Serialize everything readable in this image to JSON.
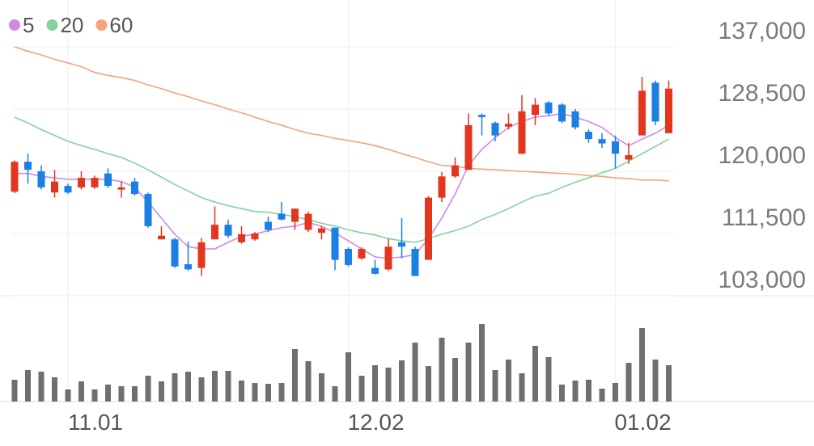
{
  "chart_data": {
    "type": "candlestick",
    "categories": [
      null,
      null,
      null,
      null,
      "11.01",
      null,
      null,
      null,
      null,
      null,
      null,
      null,
      null,
      null,
      null,
      null,
      null,
      null,
      null,
      null,
      null,
      null,
      null,
      null,
      null,
      "12.02",
      null,
      null,
      null,
      null,
      null,
      null,
      null,
      null,
      null,
      null,
      null,
      null,
      null,
      null,
      null,
      null,
      null,
      null,
      null,
      "01.02",
      null,
      null,
      null,
      null
    ],
    "open": [
      117200,
      121300,
      120000,
      117100,
      118000,
      117800,
      117800,
      119700,
      117500,
      118600,
      116900,
      110700,
      110700,
      107300,
      106800,
      110700,
      112700,
      110300,
      110700,
      113100,
      114200,
      113100,
      112000,
      111600,
      112300,
      109400,
      108100,
      106800,
      106600,
      110300,
      109400,
      107900,
      116400,
      119300,
      120200,
      127700,
      126600,
      126100,
      122400,
      127700,
      129400,
      129100,
      128200,
      125400,
      124400,
      124100,
      121600,
      124900,
      132100,
      125200
    ],
    "high": [
      121500,
      122400,
      120800,
      120200,
      118300,
      120000,
      119400,
      120400,
      118600,
      119100,
      117100,
      112500,
      110900,
      110400,
      110900,
      115200,
      113400,
      112500,
      111700,
      113800,
      115800,
      114900,
      114500,
      112500,
      112300,
      109600,
      109600,
      107900,
      110800,
      113600,
      109700,
      116600,
      119900,
      121900,
      127900,
      127900,
      126800,
      127900,
      130400,
      130000,
      129600,
      129300,
      128500,
      125700,
      125200,
      124900,
      123900,
      132900,
      132400,
      132400
    ],
    "low": [
      117000,
      118300,
      117500,
      116400,
      116900,
      117500,
      117600,
      117700,
      116400,
      116700,
      112300,
      110700,
      106800,
      106400,
      105700,
      110700,
      110900,
      110100,
      110500,
      111700,
      113300,
      112000,
      111700,
      110700,
      106500,
      107000,
      107900,
      105900,
      106400,
      108100,
      105700,
      107900,
      115800,
      119100,
      120200,
      124900,
      124100,
      125700,
      122400,
      126300,
      127600,
      126600,
      125700,
      123900,
      123200,
      120400,
      121000,
      124900,
      126300,
      125200
    ],
    "close": [
      121300,
      120200,
      117800,
      118600,
      117100,
      119100,
      119100,
      118000,
      117800,
      116900,
      112500,
      111200,
      107000,
      106600,
      110300,
      112700,
      111200,
      111400,
      111500,
      112000,
      113400,
      114900,
      114200,
      112200,
      107900,
      107200,
      109400,
      106000,
      109700,
      109700,
      105700,
      116400,
      119300,
      120800,
      126300,
      127400,
      124900,
      126500,
      128200,
      129100,
      127900,
      126800,
      126000,
      124400,
      123800,
      122400,
      122200,
      131000,
      126800,
      131300
    ],
    "up_color": "#e2361f",
    "down_color": "#1b7fe3",
    "series": [
      {
        "name": "5",
        "color": "#cf8ae6",
        "values": [
          119700,
          119700,
          119300,
          119100,
          118900,
          118900,
          118900,
          118900,
          118600,
          117800,
          115800,
          113600,
          111400,
          109700,
          109400,
          109400,
          110300,
          111100,
          111400,
          111900,
          112300,
          112500,
          113000,
          112500,
          111600,
          110500,
          109400,
          108300,
          108100,
          108300,
          108600,
          110800,
          113600,
          116900,
          120800,
          123000,
          124600,
          126000,
          126800,
          127400,
          127600,
          127900,
          127400,
          126800,
          126000,
          124600,
          123500,
          124400,
          125200,
          126300
        ]
      },
      {
        "name": "20",
        "color": "#82d49c",
        "values": [
          127400,
          126600,
          125700,
          124900,
          124100,
          123500,
          123000,
          122400,
          121900,
          121100,
          120200,
          119200,
          118200,
          117300,
          116400,
          115800,
          115300,
          114900,
          114500,
          114400,
          114100,
          113800,
          113400,
          112900,
          112500,
          112000,
          111600,
          111300,
          110800,
          110500,
          110300,
          110800,
          111400,
          111900,
          112500,
          113400,
          114100,
          114900,
          115800,
          116600,
          117000,
          117800,
          118500,
          119100,
          119800,
          120400,
          121400,
          122400,
          123400,
          124400
        ]
      },
      {
        "name": "60",
        "color": "#f6a27e",
        "values": [
          137000,
          136400,
          135900,
          135300,
          134800,
          134300,
          133500,
          133100,
          132800,
          132400,
          131800,
          131300,
          130700,
          130200,
          129600,
          129100,
          128500,
          128000,
          127400,
          126800,
          126300,
          125700,
          125200,
          124900,
          124500,
          124200,
          123900,
          123500,
          123000,
          122400,
          121900,
          121300,
          120800,
          120700,
          120400,
          120300,
          120200,
          120100,
          120000,
          119900,
          119800,
          119700,
          119600,
          119400,
          119300,
          119100,
          119000,
          118800,
          118800,
          118700
        ]
      }
    ],
    "volume": [
      27,
      39,
      37,
      30,
      15,
      25,
      15,
      21,
      19,
      19,
      32,
      25,
      35,
      37,
      30,
      38,
      38,
      26,
      23,
      22,
      23,
      65,
      50,
      35,
      19,
      61,
      32,
      45,
      42,
      51,
      73,
      44,
      79,
      54,
      73,
      96,
      39,
      52,
      35,
      69,
      55,
      21,
      26,
      27,
      16,
      23,
      48,
      91,
      52,
      45
    ],
    "volume_color": "#6f6f6f",
    "ylim": [
      103000,
      137000
    ],
    "yticks": [
      {
        "value": 103000,
        "label": "103,000"
      },
      {
        "value": 111500,
        "label": "111,500"
      },
      {
        "value": 120000,
        "label": "120,000"
      },
      {
        "value": 128500,
        "label": "128,500"
      },
      {
        "value": 137000,
        "label": "137,000"
      }
    ],
    "grid": true
  }
}
